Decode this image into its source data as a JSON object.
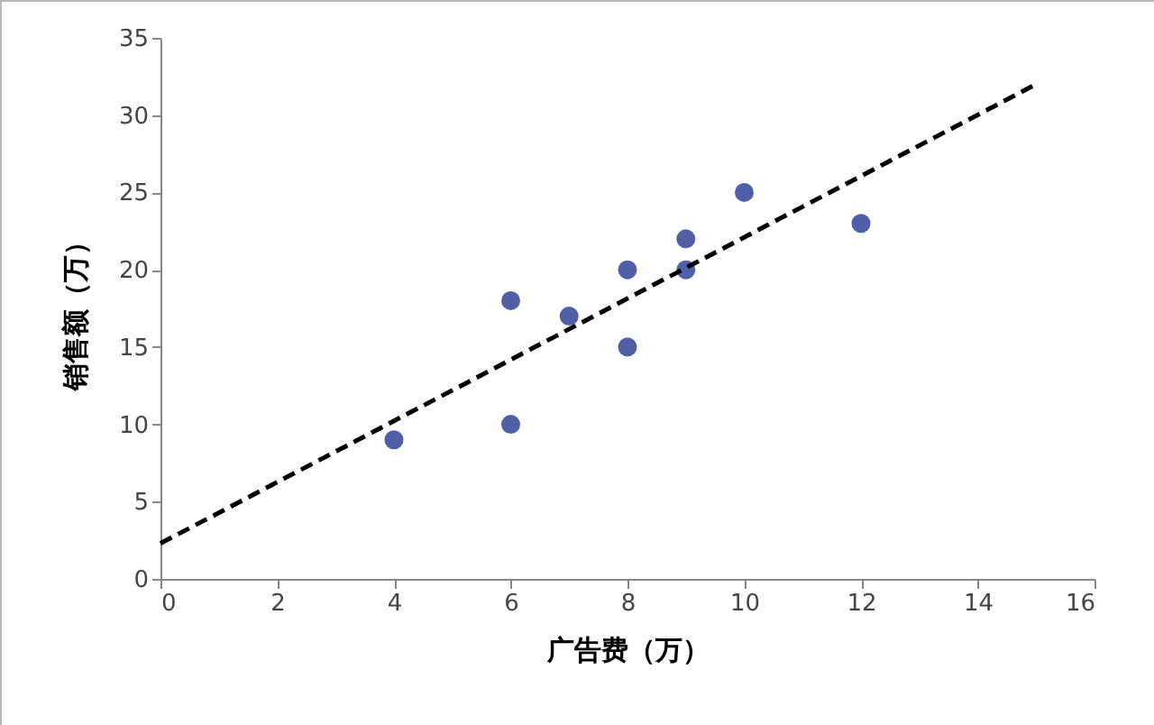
{
  "chart_data": {
    "type": "scatter",
    "xlabel": "广告费（万）",
    "ylabel": "销售额（万）",
    "xlim": [
      0,
      16
    ],
    "xticks": [
      0,
      2,
      4,
      6,
      8,
      10,
      12,
      14,
      16
    ],
    "ylim": [
      0,
      35
    ],
    "yticks": [
      0,
      5,
      10,
      15,
      20,
      25,
      30,
      35
    ],
    "series": [
      {
        "marker": "circle",
        "color": "#4f5fa8",
        "x": [
          4,
          6,
          6,
          7,
          8,
          8,
          9,
          9,
          10,
          12
        ],
        "values": [
          9,
          18,
          10,
          17,
          20,
          15,
          22,
          20,
          25,
          23
        ]
      },
      {
        "type": "line",
        "color": "#000000",
        "line_style": "dashed",
        "x": [
          0,
          15
        ],
        "values": [
          2.3,
          32
        ]
      }
    ]
  }
}
